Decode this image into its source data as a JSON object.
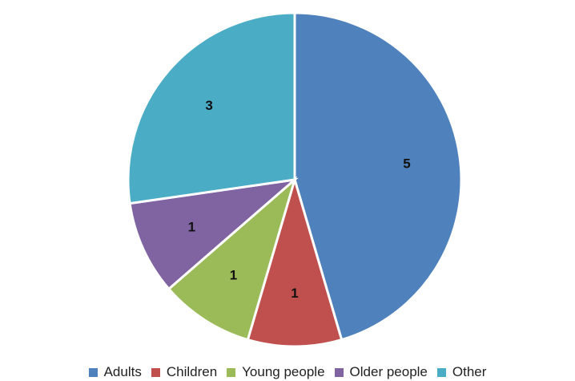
{
  "chart_data": {
    "type": "pie",
    "categories": [
      "Adults",
      "Children",
      "Young people",
      "Older people",
      "Other"
    ],
    "values": [
      5,
      1,
      1,
      1,
      3
    ],
    "data_labels": [
      "5",
      "1",
      "1",
      "1",
      "3"
    ],
    "colors": [
      "#4F81BD",
      "#C0504D",
      "#9BBB59",
      "#8064A2",
      "#4BACC6"
    ],
    "start_angle": "12 o'clock",
    "direction": "clockwise",
    "legend": "bottom"
  }
}
